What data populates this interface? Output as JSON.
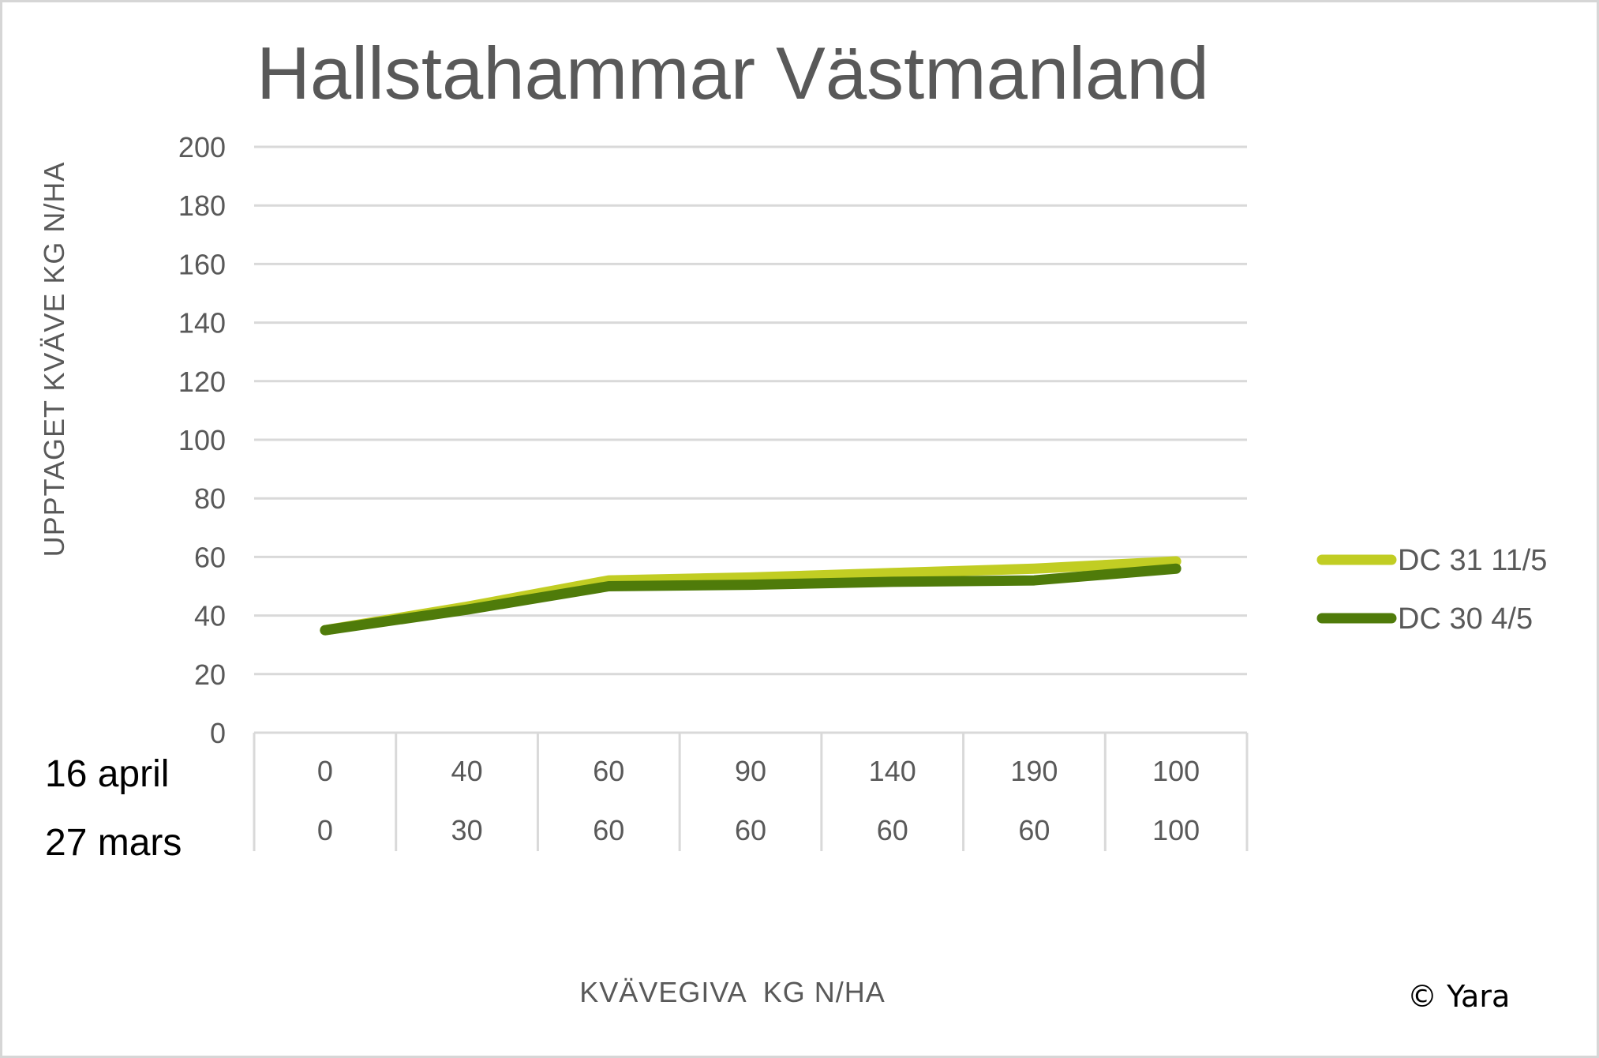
{
  "chart_data": {
    "type": "line",
    "title": "Hallstahammar Västmanland",
    "ylabel": "UPPTAGET KVÄVE KG N/HA",
    "xlabel": "KVÄVEGIVA  KG N/HA",
    "ylim": [
      0,
      200
    ],
    "yticks": [
      "0",
      "20",
      "40",
      "60",
      "80",
      "100",
      "120",
      "140",
      "160",
      "180",
      "200"
    ],
    "grid": true,
    "legend_position": "right",
    "category_rows": [
      {
        "label": "16 april",
        "values": [
          "0",
          "40",
          "60",
          "90",
          "140",
          "190",
          "100"
        ]
      },
      {
        "label": "27 mars",
        "values": [
          "0",
          "30",
          "60",
          "60",
          "60",
          "60",
          "100"
        ]
      }
    ],
    "series": [
      {
        "name": "DC 31 11/5",
        "color": "#c1cd23",
        "values": [
          35,
          43,
          52,
          53,
          54.5,
          56,
          58.5
        ]
      },
      {
        "name": "DC 30 4/5",
        "color": "#4f7b0a",
        "values": [
          35,
          42,
          50,
          50.5,
          51.5,
          52,
          56
        ]
      }
    ]
  },
  "copyright": "© Yara",
  "colors": {
    "gridline": "#d9d9d9",
    "text": "#595959"
  }
}
